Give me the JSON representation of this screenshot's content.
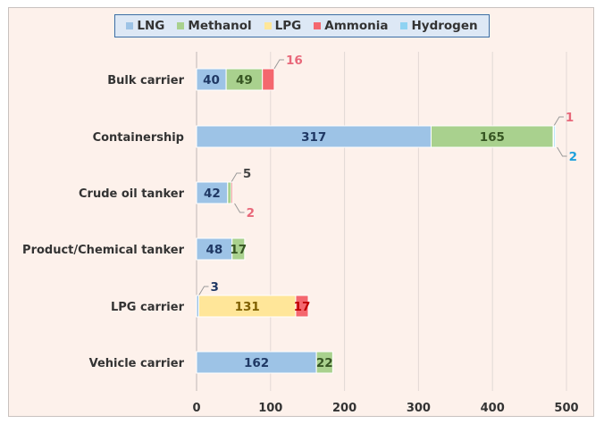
{
  "chart_data": {
    "type": "bar",
    "orientation": "horizontal",
    "stacked": true,
    "categories": [
      "Bulk carrier",
      "Containership",
      "Crude oil tanker",
      "Product/Chemical tanker",
      "LPG carrier",
      "Vehicle carrier"
    ],
    "series": [
      {
        "name": "LNG",
        "color": "#9dc3e6",
        "label_color": "#1f3864",
        "values": [
          40,
          317,
          42,
          48,
          3,
          162
        ]
      },
      {
        "name": "Methanol",
        "color": "#a9d18e",
        "label_color": "#375623",
        "values": [
          49,
          165,
          5,
          17,
          0,
          22
        ]
      },
      {
        "name": "LPG",
        "color": "#ffe699",
        "label_color": "#7f6000",
        "values": [
          0,
          0,
          0,
          0,
          131,
          0
        ]
      },
      {
        "name": "Ammonia",
        "color": "#f4676e",
        "label_color": "#c00000",
        "values": [
          16,
          1,
          2,
          0,
          17,
          0
        ]
      },
      {
        "name": "Hydrogen",
        "color": "#8fd3f2",
        "label_color": "#1ea0dc",
        "values": [
          0,
          2,
          0,
          0,
          0,
          0
        ]
      }
    ],
    "xlim": [
      0,
      500
    ],
    "xticks": [
      "0",
      "100",
      "200",
      "300",
      "400",
      "500"
    ],
    "grid": true,
    "legend": "top",
    "xlabel": "",
    "ylabel": "",
    "title": ""
  }
}
